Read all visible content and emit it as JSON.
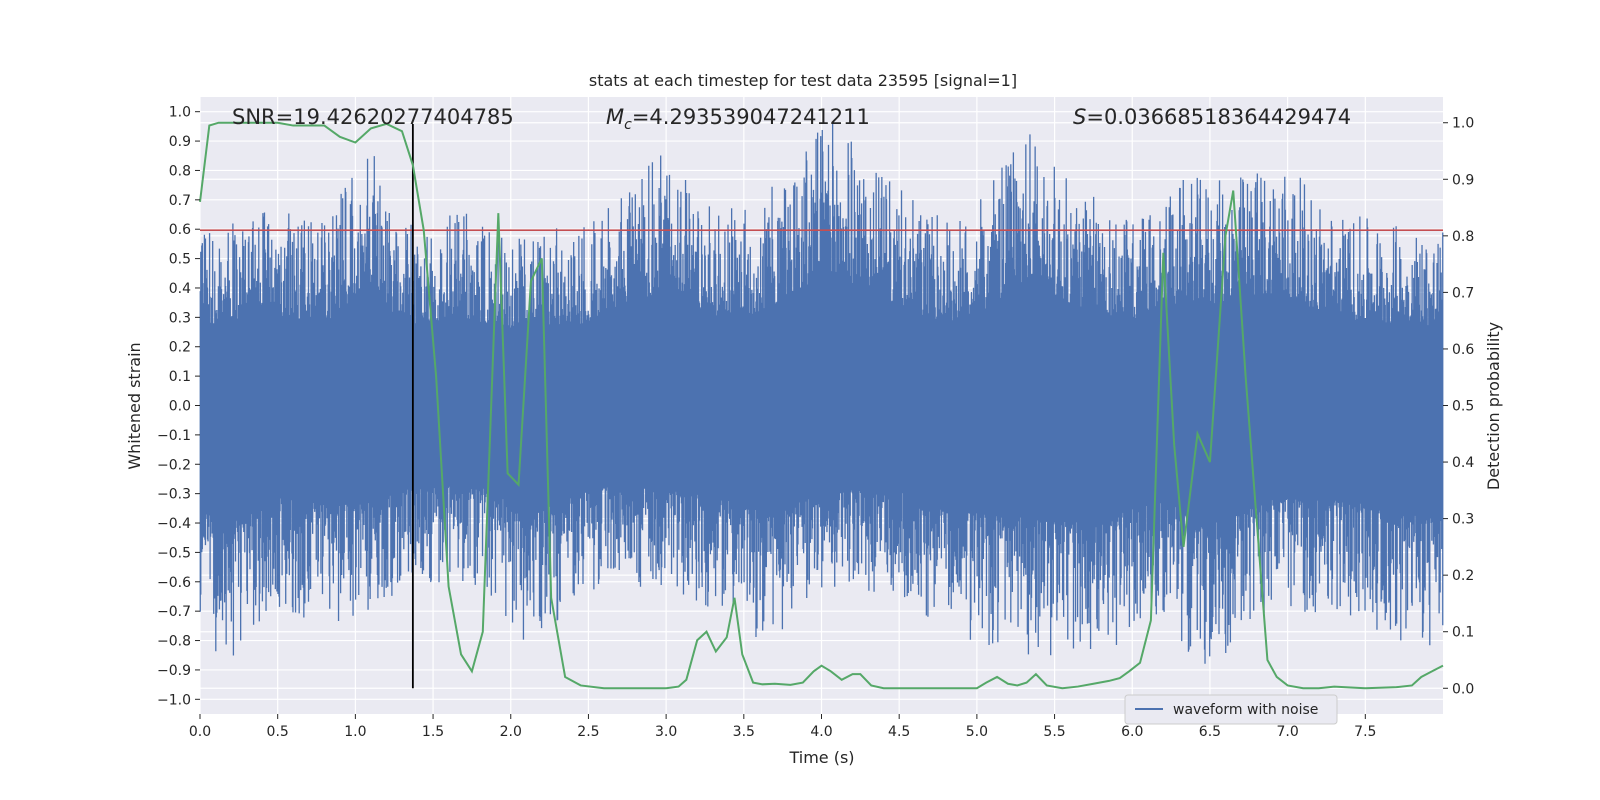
{
  "chart_data": {
    "type": "line",
    "title": "stats at each timestep for test data 23595 [signal=1]",
    "xlabel": "Time (s)",
    "ylabel_left": "Whitened strain",
    "ylabel_right": "Detection probability",
    "xlim": [
      0.0,
      8.0
    ],
    "ylim_left": [
      -1.05,
      1.05
    ],
    "ylim_right": [
      -0.0455,
      1.0455
    ],
    "x_ticks": [
      "0.0",
      "0.5",
      "1.0",
      "1.5",
      "2.0",
      "2.5",
      "3.0",
      "3.5",
      "4.0",
      "4.5",
      "5.0",
      "5.5",
      "6.0",
      "6.5",
      "7.0",
      "7.5"
    ],
    "y_ticks_left": [
      "1.0",
      "0.9",
      "0.8",
      "0.7",
      "0.6",
      "0.5",
      "0.4",
      "0.3",
      "0.2",
      "0.1",
      "0.0",
      "−0.1",
      "−0.2",
      "−0.3",
      "−0.4",
      "−0.5",
      "−0.6",
      "−0.7",
      "−0.8",
      "−0.9",
      "−1.0"
    ],
    "y_ticks_right": [
      "1.0",
      "0.9",
      "0.8",
      "0.7",
      "0.6",
      "0.5",
      "0.4",
      "0.3",
      "0.2",
      "0.1",
      "0.0"
    ],
    "grid": true,
    "background": "#eaeaf2",
    "annotations": {
      "snr": "SNR=19.42620277404785",
      "mc_symbol": "M",
      "mc_sub": "c",
      "mc_value": "=4.293539047241211",
      "s_symbol": "S",
      "s_value": "=0.03668518364429474"
    },
    "threshold": {
      "value": 0.81,
      "color": "#c44e52"
    },
    "event_line": {
      "x": 1.37,
      "color": "#000000"
    },
    "legend": {
      "label": "waveform with noise",
      "position": "lower right"
    },
    "series": [
      {
        "name": "waveform with noise",
        "axis": "left",
        "color": "#4c72b0",
        "envelope_upper": [
          [
            0.0,
            0.6
          ],
          [
            0.2,
            0.63
          ],
          [
            0.5,
            0.68
          ],
          [
            0.8,
            0.62
          ],
          [
            1.1,
            0.91
          ],
          [
            1.3,
            0.61
          ],
          [
            1.45,
            0.63
          ],
          [
            1.7,
            0.66
          ],
          [
            2.0,
            0.58
          ],
          [
            2.5,
            0.62
          ],
          [
            2.85,
            0.8
          ],
          [
            3.05,
            0.9
          ],
          [
            3.3,
            0.66
          ],
          [
            3.6,
            0.69
          ],
          [
            4.05,
            1.0
          ],
          [
            4.4,
            0.78
          ],
          [
            4.7,
            0.66
          ],
          [
            4.9,
            0.63
          ],
          [
            5.1,
            0.76
          ],
          [
            5.33,
            0.95
          ],
          [
            5.6,
            0.76
          ],
          [
            6.0,
            0.64
          ],
          [
            6.35,
            0.78
          ],
          [
            6.6,
            0.77
          ],
          [
            6.95,
            0.85
          ],
          [
            7.3,
            0.66
          ],
          [
            7.7,
            0.62
          ],
          [
            8.0,
            0.6
          ]
        ],
        "envelope_lower": [
          [
            0.0,
            -0.78
          ],
          [
            0.15,
            -0.9
          ],
          [
            0.5,
            -0.7
          ],
          [
            0.9,
            -0.76
          ],
          [
            1.25,
            -0.65
          ],
          [
            1.5,
            -0.6
          ],
          [
            1.85,
            -0.63
          ],
          [
            2.1,
            -0.82
          ],
          [
            2.6,
            -0.6
          ],
          [
            3.0,
            -0.63
          ],
          [
            3.4,
            -0.72
          ],
          [
            3.7,
            -0.84
          ],
          [
            4.0,
            -0.62
          ],
          [
            4.5,
            -0.65
          ],
          [
            4.9,
            -0.8
          ],
          [
            5.6,
            -0.88
          ],
          [
            5.85,
            -0.85
          ],
          [
            6.2,
            -0.7
          ],
          [
            6.45,
            -0.92
          ],
          [
            6.9,
            -0.7
          ],
          [
            7.4,
            -0.72
          ],
          [
            8.0,
            -0.87
          ]
        ]
      },
      {
        "name": "",
        "axis": "right",
        "color": "#55a868",
        "x": [
          0.0,
          0.06,
          0.12,
          0.2,
          0.3,
          0.4,
          0.5,
          0.6,
          0.7,
          0.8,
          0.9,
          1.0,
          1.1,
          1.2,
          1.3,
          1.37,
          1.44,
          1.52,
          1.6,
          1.68,
          1.75,
          1.82,
          1.87,
          1.92,
          1.98,
          2.05,
          2.13,
          2.2,
          2.26,
          2.35,
          2.45,
          2.6,
          2.8,
          3.0,
          3.08,
          3.13,
          3.2,
          3.26,
          3.32,
          3.39,
          3.44,
          3.49,
          3.56,
          3.62,
          3.7,
          3.8,
          3.88,
          3.95,
          4.0,
          4.06,
          4.13,
          4.2,
          4.25,
          4.32,
          4.4,
          4.6,
          4.8,
          5.0,
          5.06,
          5.13,
          5.2,
          5.26,
          5.32,
          5.38,
          5.45,
          5.55,
          5.65,
          5.75,
          5.85,
          5.92,
          5.98,
          6.05,
          6.12,
          6.2,
          6.27,
          6.33,
          6.42,
          6.5,
          6.55,
          6.6,
          6.65,
          6.73,
          6.8,
          6.87,
          6.93,
          7.0,
          7.1,
          7.2,
          7.3,
          7.5,
          7.7,
          7.8,
          7.86,
          7.93,
          8.0
        ],
        "y": [
          0.86,
          0.995,
          1.0,
          1.0,
          1.0,
          1.0,
          1.0,
          0.995,
          0.995,
          0.995,
          0.975,
          0.965,
          0.99,
          0.998,
          0.985,
          0.925,
          0.81,
          0.55,
          0.18,
          0.06,
          0.03,
          0.1,
          0.47,
          0.84,
          0.38,
          0.36,
          0.72,
          0.76,
          0.16,
          0.02,
          0.005,
          0.0,
          0.0,
          0.0,
          0.003,
          0.015,
          0.085,
          0.1,
          0.065,
          0.09,
          0.16,
          0.06,
          0.01,
          0.007,
          0.008,
          0.006,
          0.01,
          0.03,
          0.04,
          0.03,
          0.015,
          0.025,
          0.025,
          0.005,
          0.0,
          0.0,
          0.0,
          0.0,
          0.01,
          0.02,
          0.008,
          0.005,
          0.01,
          0.025,
          0.005,
          0.0,
          0.003,
          0.008,
          0.013,
          0.018,
          0.03,
          0.045,
          0.12,
          0.77,
          0.43,
          0.25,
          0.45,
          0.4,
          0.6,
          0.8,
          0.88,
          0.55,
          0.3,
          0.05,
          0.02,
          0.005,
          0.0,
          0.0,
          0.003,
          0.0,
          0.002,
          0.005,
          0.02,
          0.03,
          0.04
        ]
      }
    ]
  }
}
